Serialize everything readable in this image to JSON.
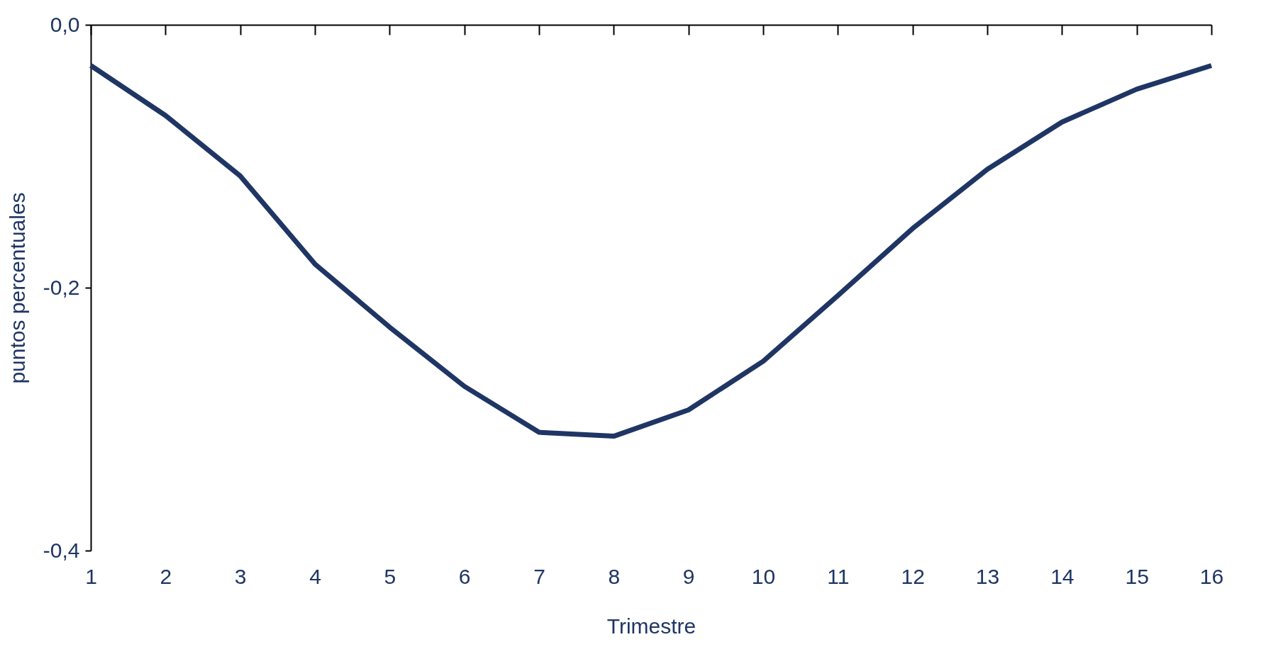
{
  "chart_data": {
    "type": "line",
    "xlabel": "Trimestre",
    "ylabel": "puntos percentuales",
    "x": [
      1,
      2,
      3,
      4,
      5,
      6,
      7,
      8,
      9,
      10,
      11,
      12,
      13,
      14,
      15,
      16
    ],
    "series": [
      {
        "color": "#1f3564",
        "values": [
          -0.031,
          -0.069,
          -0.115,
          -0.182,
          -0.23,
          -0.275,
          -0.31,
          -0.313,
          -0.293,
          -0.256,
          -0.206,
          -0.155,
          -0.11,
          -0.074,
          -0.049,
          -0.031
        ]
      }
    ],
    "xlim": [
      1,
      16
    ],
    "xticks": [
      1,
      2,
      3,
      4,
      5,
      6,
      7,
      8,
      9,
      10,
      11,
      12,
      13,
      14,
      15,
      16
    ],
    "ylim": [
      -0.4,
      0
    ],
    "yticks": [
      {
        "value": 0,
        "label": "0,0"
      },
      {
        "value": -0.2,
        "label": "-0,2"
      },
      {
        "value": -0.4,
        "label": "-0,4"
      }
    ],
    "grid": false,
    "legend": false,
    "marker": "none",
    "line_style": "solid"
  }
}
